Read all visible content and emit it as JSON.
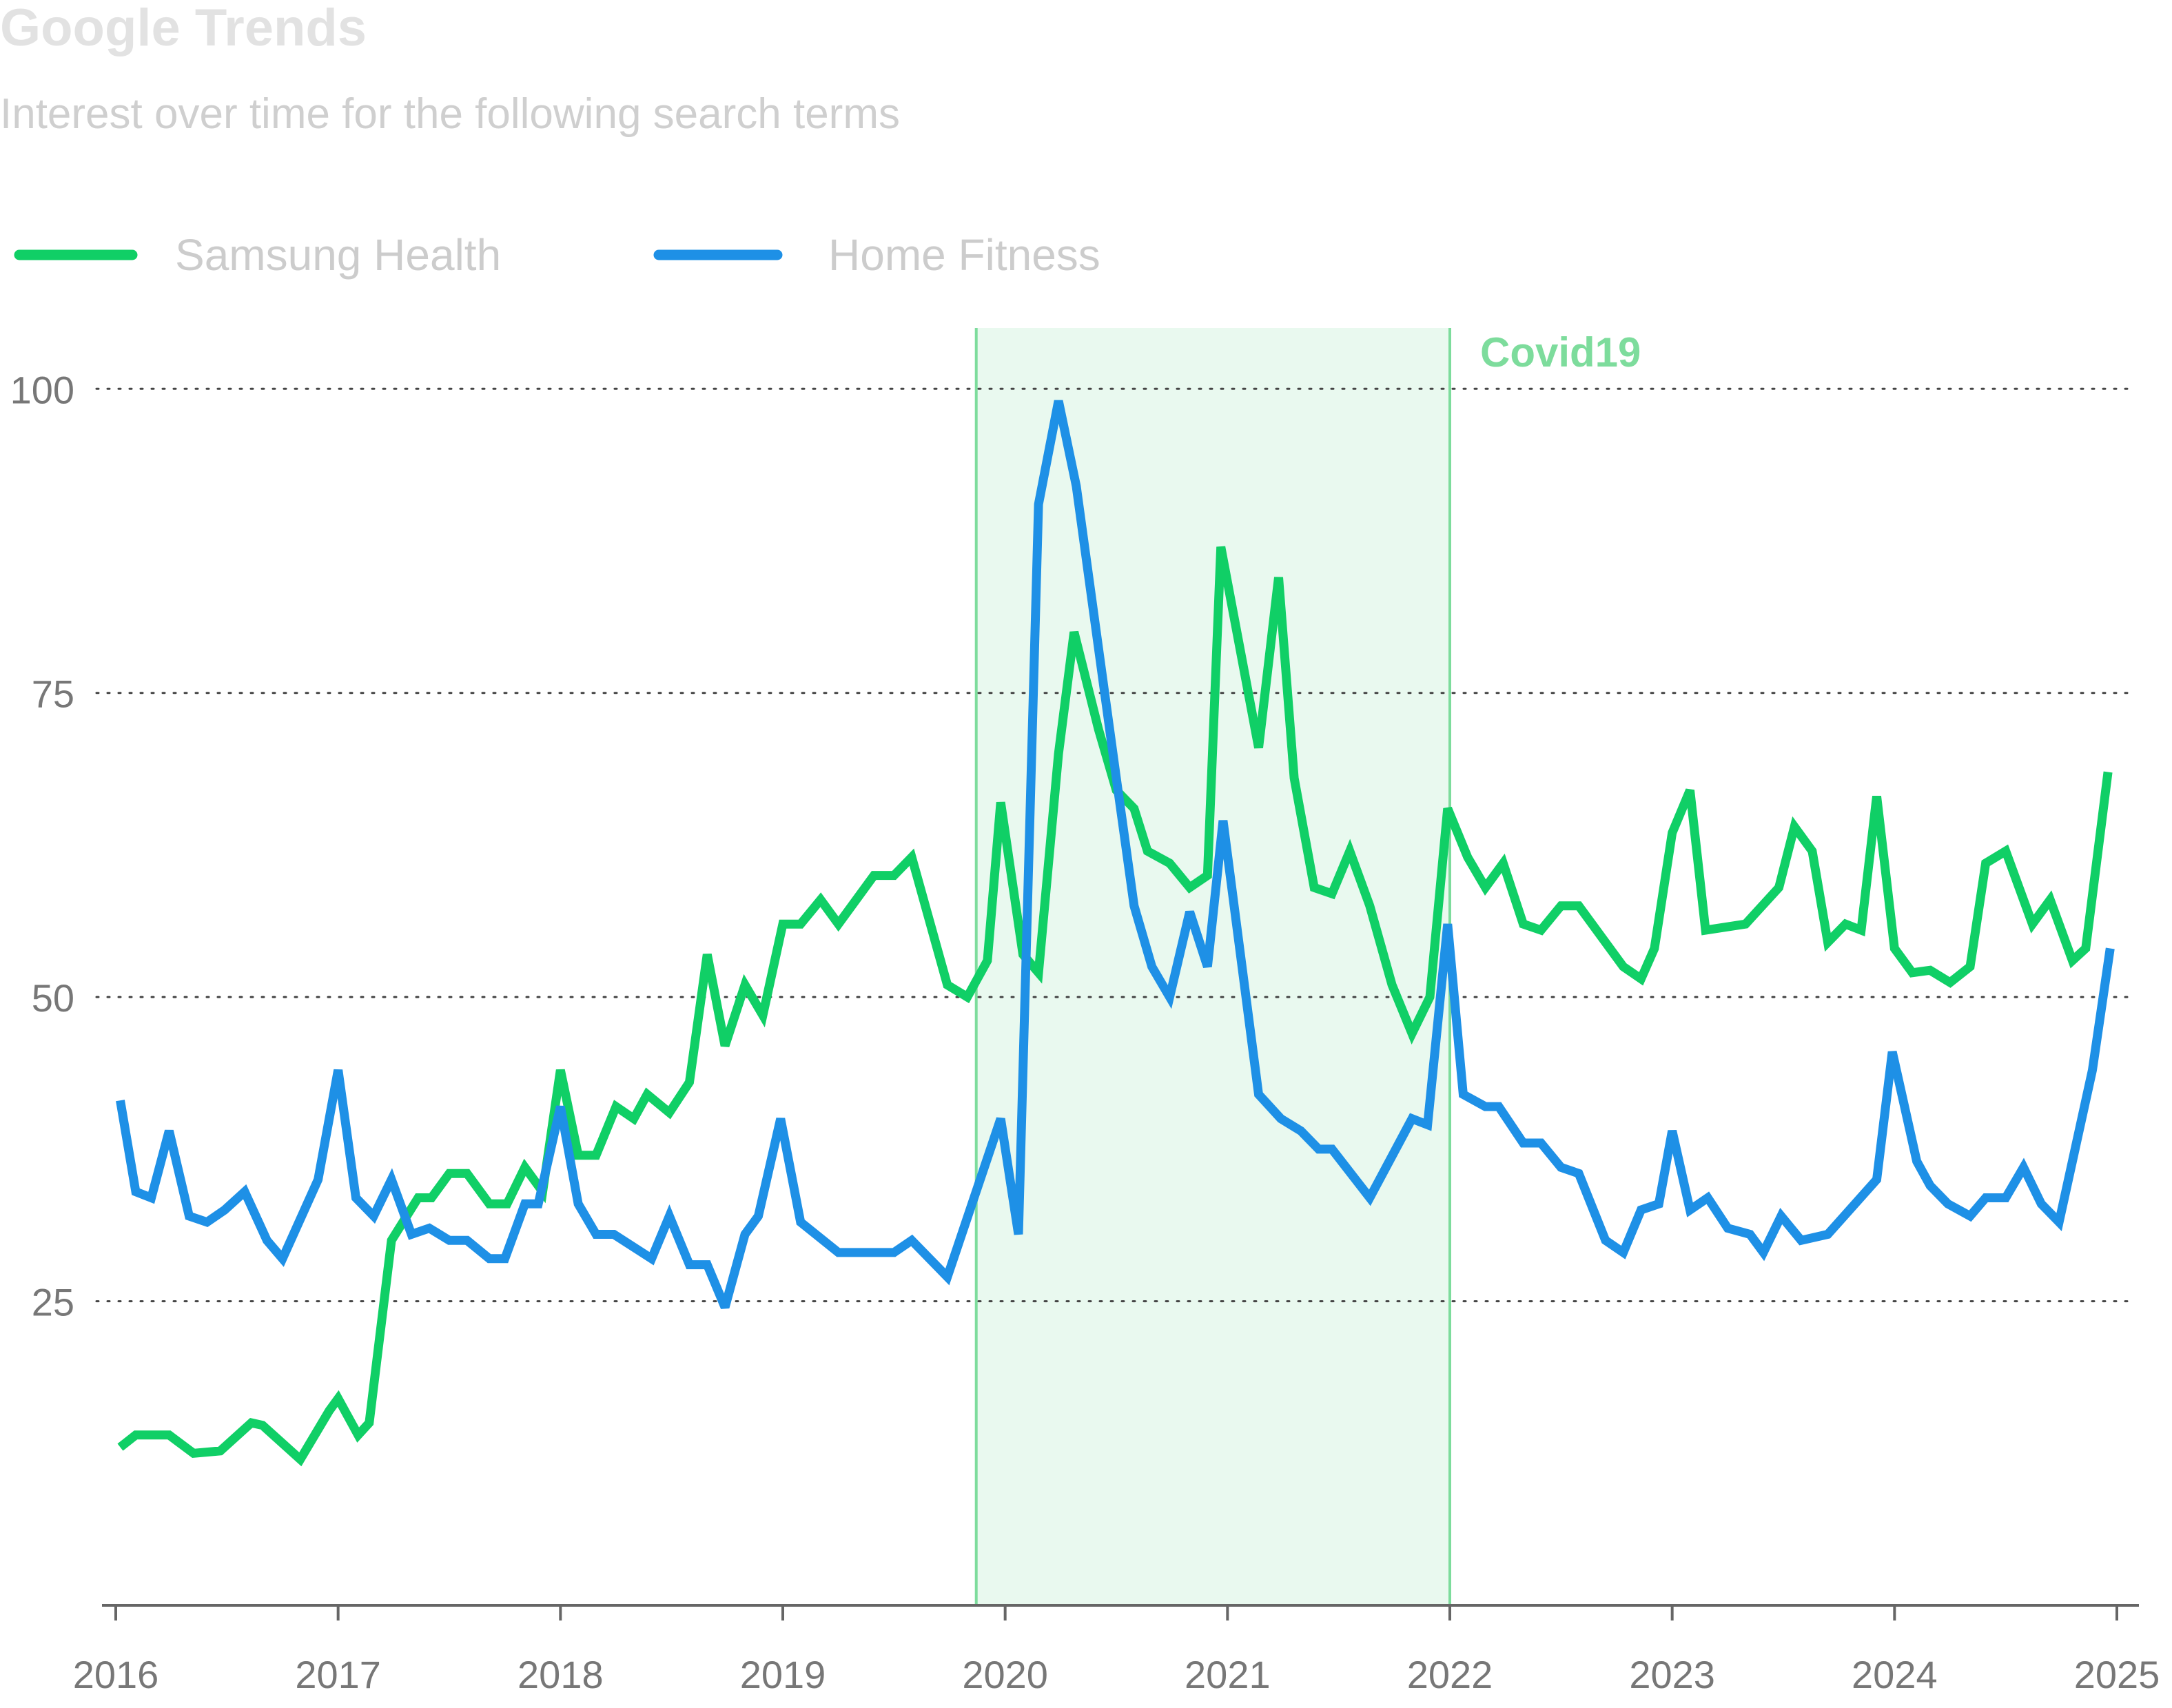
{
  "chart_data": {
    "type": "line",
    "title": "Google Trends",
    "subtitle": "Interest over time for the following search terms",
    "xlabel": "",
    "ylabel": "",
    "x_ticks": [
      "2016",
      "2017",
      "2018",
      "2019",
      "2020",
      "2021",
      "2022",
      "2023",
      "2024",
      "2025"
    ],
    "xlim": [
      2016,
      2025
    ],
    "y_ticks": [
      25,
      50,
      75,
      100
    ],
    "ylim": [
      0,
      105
    ],
    "grid": "horizontal-dotted",
    "legend_position": "top-left",
    "annotation": {
      "label": "Covid19",
      "x_start": 2019.87,
      "x_end": 2022.0,
      "color": "#7ddc9c",
      "fill": "#e9f9ef"
    },
    "colors": {
      "title": "#e2e2e2",
      "subtitle": "#cfcfcf",
      "legend_text": "#cccccc",
      "tick_text": "#777777",
      "grid": "#444444",
      "axis": "#666666"
    },
    "series": [
      {
        "name": "Samsung Health",
        "color": "#10cf66",
        "points": [
          [
            2016.02,
            13
          ],
          [
            2016.09,
            14
          ],
          [
            2016.24,
            14
          ],
          [
            2016.35,
            12.5
          ],
          [
            2016.47,
            12.7
          ],
          [
            2016.61,
            15
          ],
          [
            2016.66,
            14.8
          ],
          [
            2016.83,
            12
          ],
          [
            2016.96,
            16
          ],
          [
            2017.0,
            17
          ],
          [
            2017.09,
            14
          ],
          [
            2017.14,
            15
          ],
          [
            2017.24,
            30
          ],
          [
            2017.36,
            33.5
          ],
          [
            2017.42,
            33.5
          ],
          [
            2017.5,
            35.5
          ],
          [
            2017.58,
            35.5
          ],
          [
            2017.68,
            33
          ],
          [
            2017.76,
            33
          ],
          [
            2017.84,
            36
          ],
          [
            2017.92,
            34
          ],
          [
            2018.0,
            44
          ],
          [
            2018.08,
            37
          ],
          [
            2018.16,
            37
          ],
          [
            2018.25,
            41
          ],
          [
            2018.33,
            40
          ],
          [
            2018.39,
            42
          ],
          [
            2018.49,
            40.5
          ],
          [
            2018.58,
            43
          ],
          [
            2018.66,
            53.5
          ],
          [
            2018.74,
            46
          ],
          [
            2018.83,
            51
          ],
          [
            2018.91,
            48.5
          ],
          [
            2019.0,
            56
          ],
          [
            2019.08,
            56
          ],
          [
            2019.17,
            58
          ],
          [
            2019.25,
            56
          ],
          [
            2019.41,
            60
          ],
          [
            2019.5,
            60
          ],
          [
            2019.58,
            61.5
          ],
          [
            2019.74,
            51
          ],
          [
            2019.83,
            50
          ],
          [
            2019.92,
            53
          ],
          [
            2019.98,
            66
          ],
          [
            2020.08,
            53.5
          ],
          [
            2020.15,
            52
          ],
          [
            2020.24,
            70
          ],
          [
            2020.31,
            80
          ],
          [
            2020.42,
            72
          ],
          [
            2020.5,
            67
          ],
          [
            2020.58,
            65.5
          ],
          [
            2020.64,
            62
          ],
          [
            2020.74,
            61
          ],
          [
            2020.83,
            59
          ],
          [
            2020.91,
            60
          ],
          [
            2020.97,
            87
          ],
          [
            2021.14,
            70.5
          ],
          [
            2021.23,
            84.5
          ],
          [
            2021.3,
            68
          ],
          [
            2021.39,
            59
          ],
          [
            2021.47,
            58.5
          ],
          [
            2021.55,
            62
          ],
          [
            2021.64,
            57.5
          ],
          [
            2021.74,
            51
          ],
          [
            2021.83,
            47
          ],
          [
            2021.91,
            50
          ],
          [
            2021.99,
            65.5
          ],
          [
            2022.08,
            61.5
          ],
          [
            2022.16,
            59
          ],
          [
            2022.24,
            61
          ],
          [
            2022.33,
            56
          ],
          [
            2022.41,
            55.5
          ],
          [
            2022.5,
            57.5
          ],
          [
            2022.58,
            57.5
          ],
          [
            2022.78,
            52.5
          ],
          [
            2022.86,
            51.5
          ],
          [
            2022.92,
            54
          ],
          [
            2023.0,
            63.5
          ],
          [
            2023.08,
            67
          ],
          [
            2023.15,
            55.5
          ],
          [
            2023.33,
            56
          ],
          [
            2023.48,
            59
          ],
          [
            2023.55,
            64
          ],
          [
            2023.63,
            62
          ],
          [
            2023.7,
            54.5
          ],
          [
            2023.78,
            56
          ],
          [
            2023.85,
            55.5
          ],
          [
            2023.92,
            66.5
          ],
          [
            2024.0,
            54
          ],
          [
            2024.08,
            52
          ],
          [
            2024.16,
            52.2
          ],
          [
            2024.25,
            51.2
          ],
          [
            2024.34,
            52.5
          ],
          [
            2024.41,
            61
          ],
          [
            2024.5,
            62
          ],
          [
            2024.62,
            56
          ],
          [
            2024.7,
            58
          ],
          [
            2024.8,
            53
          ],
          [
            2024.86,
            54
          ],
          [
            2024.96,
            68.5
          ]
        ]
      },
      {
        "name": "Home Fitness",
        "color": "#1e90e6",
        "points": [
          [
            2016.02,
            41.5
          ],
          [
            2016.09,
            34
          ],
          [
            2016.16,
            33.5
          ],
          [
            2016.24,
            39
          ],
          [
            2016.33,
            32
          ],
          [
            2016.41,
            31.5
          ],
          [
            2016.49,
            32.5
          ],
          [
            2016.58,
            34
          ],
          [
            2016.68,
            30
          ],
          [
            2016.75,
            28.5
          ],
          [
            2016.91,
            35
          ],
          [
            2017.0,
            44
          ],
          [
            2017.08,
            33.5
          ],
          [
            2017.16,
            32
          ],
          [
            2017.24,
            35
          ],
          [
            2017.33,
            30.5
          ],
          [
            2017.41,
            31
          ],
          [
            2017.5,
            30
          ],
          [
            2017.58,
            30
          ],
          [
            2017.68,
            28.5
          ],
          [
            2017.75,
            28.5
          ],
          [
            2017.84,
            33
          ],
          [
            2017.9,
            33
          ],
          [
            2018.0,
            41
          ],
          [
            2018.08,
            33
          ],
          [
            2018.16,
            30.5
          ],
          [
            2018.24,
            30.5
          ],
          [
            2018.41,
            28.5
          ],
          [
            2018.49,
            32
          ],
          [
            2018.58,
            28
          ],
          [
            2018.66,
            28
          ],
          [
            2018.74,
            24.5
          ],
          [
            2018.83,
            30.5
          ],
          [
            2018.89,
            32
          ],
          [
            2018.99,
            40
          ],
          [
            2019.08,
            31.5
          ],
          [
            2019.25,
            29
          ],
          [
            2019.5,
            29
          ],
          [
            2019.58,
            30
          ],
          [
            2019.74,
            27
          ],
          [
            2019.98,
            40
          ],
          [
            2020.06,
            30.5
          ],
          [
            2020.15,
            90.5
          ],
          [
            2020.24,
            99
          ],
          [
            2020.32,
            92
          ],
          [
            2020.5,
            68
          ],
          [
            2020.58,
            57.5
          ],
          [
            2020.66,
            52.5
          ],
          [
            2020.74,
            50
          ],
          [
            2020.83,
            57
          ],
          [
            2020.91,
            52.5
          ],
          [
            2020.98,
            64.5
          ],
          [
            2021.14,
            42
          ],
          [
            2021.24,
            40
          ],
          [
            2021.33,
            39
          ],
          [
            2021.41,
            37.5
          ],
          [
            2021.47,
            37.5
          ],
          [
            2021.64,
            33.5
          ],
          [
            2021.83,
            40
          ],
          [
            2021.9,
            39.5
          ],
          [
            2021.99,
            56
          ],
          [
            2022.06,
            42
          ],
          [
            2022.16,
            41
          ],
          [
            2022.22,
            41
          ],
          [
            2022.33,
            38
          ],
          [
            2022.41,
            38
          ],
          [
            2022.5,
            36
          ],
          [
            2022.58,
            35.5
          ],
          [
            2022.7,
            30
          ],
          [
            2022.78,
            29
          ],
          [
            2022.86,
            32.5
          ],
          [
            2022.94,
            33
          ],
          [
            2023.0,
            39
          ],
          [
            2023.08,
            32.5
          ],
          [
            2023.16,
            33.5
          ],
          [
            2023.25,
            31
          ],
          [
            2023.35,
            30.5
          ],
          [
            2023.41,
            29
          ],
          [
            2023.49,
            32
          ],
          [
            2023.58,
            30
          ],
          [
            2023.7,
            30.5
          ],
          [
            2023.92,
            35
          ],
          [
            2023.99,
            45.5
          ],
          [
            2024.1,
            36.5
          ],
          [
            2024.16,
            34.5
          ],
          [
            2024.24,
            33
          ],
          [
            2024.34,
            32
          ],
          [
            2024.41,
            33.5
          ],
          [
            2024.5,
            33.5
          ],
          [
            2024.58,
            36
          ],
          [
            2024.66,
            33
          ],
          [
            2024.74,
            31.5
          ],
          [
            2024.89,
            44
          ],
          [
            2024.97,
            54
          ]
        ]
      }
    ]
  }
}
